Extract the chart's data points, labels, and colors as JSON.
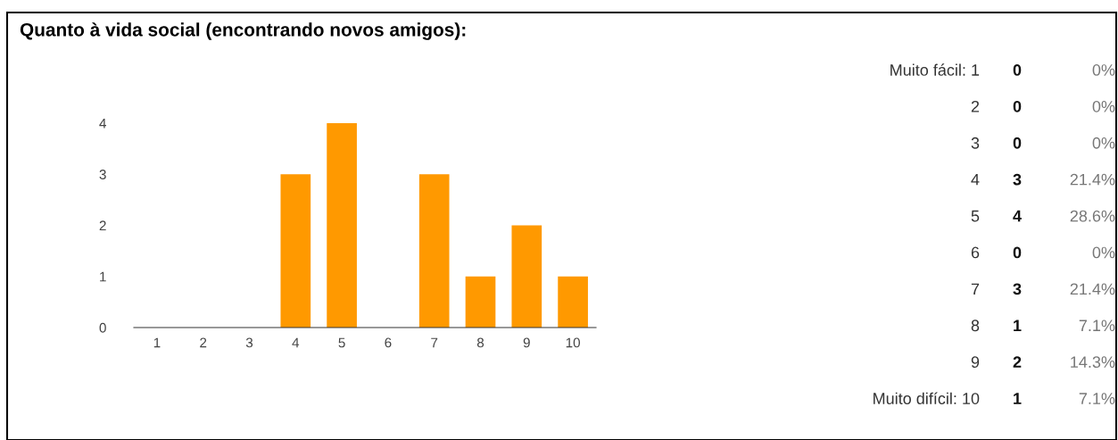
{
  "chart_data": {
    "type": "bar",
    "title": "Quanto à vida social (encontrando novos amigos):",
    "categories": [
      "1",
      "2",
      "3",
      "4",
      "5",
      "6",
      "7",
      "8",
      "9",
      "10"
    ],
    "values": [
      0,
      0,
      0,
      3,
      4,
      0,
      3,
      1,
      2,
      1
    ],
    "color": "#ff9900",
    "ylim": [
      0,
      4
    ],
    "yticks": [
      0,
      1,
      2,
      3,
      4
    ],
    "grid": false,
    "legend": false,
    "annotations": [
      "Muito fácil: 1",
      "0",
      "0%",
      "2",
      "0",
      "0%",
      "3",
      "0",
      "0%",
      "4",
      "3",
      "21.4%",
      "5",
      "4",
      "28.6%",
      "6",
      "0",
      "0%",
      "7",
      "3",
      "21.4%",
      "8",
      "1",
      "7.1%",
      "9",
      "2",
      "14.3%",
      "Muito difícil: 10",
      "1",
      "7.1%"
    ]
  }
}
